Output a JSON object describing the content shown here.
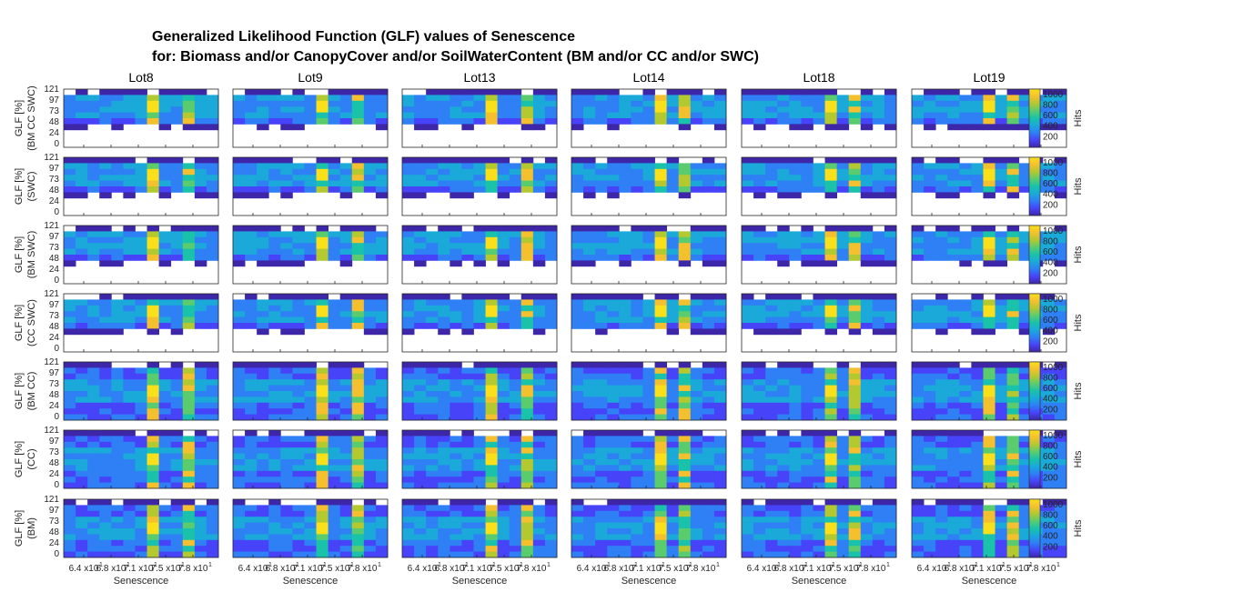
{
  "title_line1": "Generalized Likelihood Function (GLF) values of Senescence",
  "title_line2": "for: Biomass and/or CanopyCover and/or SoilWaterContent (BM and/or CC and/or SWC)",
  "chart_data": {
    "type": "heatmap",
    "columns": [
      "Lot8",
      "Lot9",
      "Lot13",
      "Lot14",
      "Lot18",
      "Lot19"
    ],
    "rows": [
      {
        "ylabel_line1": "GLF [%]",
        "ylabel_line2": "(BM CC SWC)",
        "band_rows": [
          0,
          5
        ]
      },
      {
        "ylabel_line1": "GLF [%]",
        "ylabel_line2": "(SWC)",
        "band_rows": [
          0,
          5
        ]
      },
      {
        "ylabel_line1": "GLF [%]",
        "ylabel_line2": "(BM SWC)",
        "band_rows": [
          0,
          5
        ]
      },
      {
        "ylabel_line1": "GLF [%]",
        "ylabel_line2": "(CC SWC)",
        "band_rows": [
          0,
          5
        ]
      },
      {
        "ylabel_line1": "GLF [%]",
        "ylabel_line2": "(BM CC)",
        "band_rows": [
          0,
          9
        ]
      },
      {
        "ylabel_line1": "GLF [%]",
        "ylabel_line2": "(CC)",
        "band_rows": [
          0,
          9
        ]
      },
      {
        "ylabel_line1": "GLF [%]",
        "ylabel_line2": "(BM)",
        "band_rows": [
          0,
          9
        ]
      }
    ],
    "y_ticks": [
      "121",
      "97",
      "73",
      "48",
      "24",
      "0"
    ],
    "x_ticks": [
      "6.4 x10",
      "6.8 x10",
      "7.1 x10",
      "7.5 x10",
      "7.8 x10"
    ],
    "x_ticks_lot19": [
      "6.4 x10",
      "6.8 x10",
      "7.1 x10",
      "7.5 x10",
      "7.8 x10"
    ],
    "x_tick_exponent": "1",
    "xlabel": "Senescence",
    "colorbar": {
      "label": "Hits",
      "ticks": [
        "200",
        "400",
        "600",
        "800",
        "1000"
      ],
      "min": 0,
      "max": 1100
    },
    "hot_columns": {
      "Lot8": [
        7,
        10
      ],
      "Lot9": [
        7,
        10
      ],
      "Lot13": [
        7,
        10
      ],
      "Lot14": [
        7,
        9
      ],
      "Lot18": [
        7,
        9
      ],
      "Lot19": [
        6,
        8
      ]
    },
    "colormap": [
      "#3e26a8",
      "#4743f8",
      "#2f7ff5",
      "#1aa9d9",
      "#19c2a8",
      "#5acc6e",
      "#b4c830",
      "#f5c02e",
      "#f9e01a"
    ]
  }
}
